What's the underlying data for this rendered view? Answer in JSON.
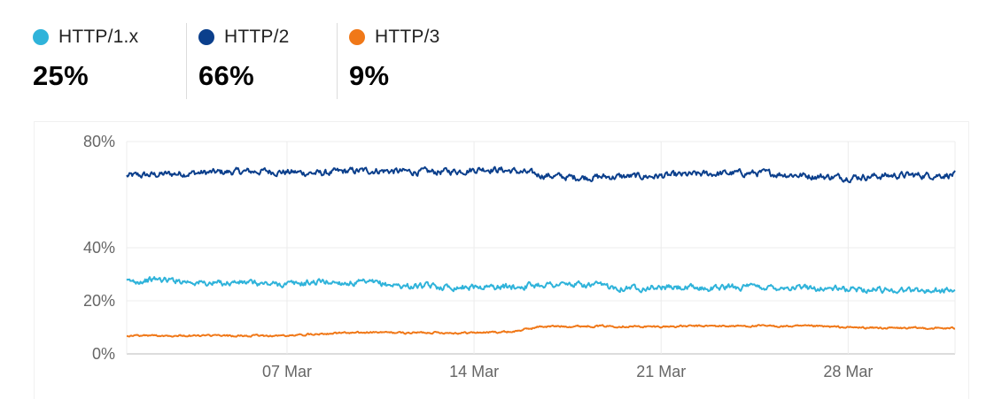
{
  "legend": [
    {
      "name": "HTTP/1.x",
      "value": "25%",
      "color": "#2fb3da"
    },
    {
      "name": "HTTP/2",
      "value": "66%",
      "color": "#0b3f8c"
    },
    {
      "name": "HTTP/3",
      "value": "9%",
      "color": "#f07818"
    }
  ],
  "chart_data": {
    "type": "line",
    "x_range": [
      "2024-03-01",
      "2024-04-01"
    ],
    "x_ticks": [
      "07 Mar",
      "14 Mar",
      "21 Mar",
      "28 Mar"
    ],
    "y_ticks": [
      "80%",
      "40%",
      "20%",
      "0%"
    ],
    "ylim": [
      0,
      80
    ],
    "grid": true,
    "series": [
      {
        "name": "HTTP/2",
        "color": "#0b3f8c",
        "values": [
          67.0,
          67.5,
          68.0,
          68.3,
          68.6,
          68.8,
          68.4,
          68.0,
          68.8,
          69.1,
          68.7,
          68.5,
          68.9,
          69.8,
          68.9,
          67.4,
          66.5,
          66.6,
          66.8,
          66.9,
          67.3,
          67.8,
          68.1,
          68.1,
          67.6,
          66.9,
          66.5,
          66.9,
          67.3,
          67.3,
          67.5
        ]
      },
      {
        "name": "HTTP/1.x",
        "color": "#2fb3da",
        "values": [
          27.0,
          28.1,
          27.6,
          26.5,
          27.0,
          26.3,
          26.3,
          27.2,
          26.8,
          26.6,
          25.6,
          25.4,
          25.2,
          25.3,
          25.2,
          26.2,
          26.1,
          25.7,
          25.0,
          25.1,
          24.9,
          24.7,
          25.3,
          25.1,
          25.1,
          24.8,
          24.4,
          24.3,
          24.1,
          23.8,
          24.0
        ]
      },
      {
        "name": "HTTP/3",
        "color": "#f07818",
        "values": [
          6.9,
          6.9,
          6.9,
          6.8,
          6.8,
          6.8,
          6.9,
          7.7,
          7.9,
          8.1,
          7.9,
          8.1,
          7.9,
          8.1,
          8.4,
          10.3,
          10.4,
          10.5,
          10.4,
          10.2,
          10.4,
          10.5,
          10.5,
          10.5,
          10.4,
          10.4,
          10.0,
          9.8,
          9.7,
          9.7,
          9.6
        ]
      }
    ]
  }
}
